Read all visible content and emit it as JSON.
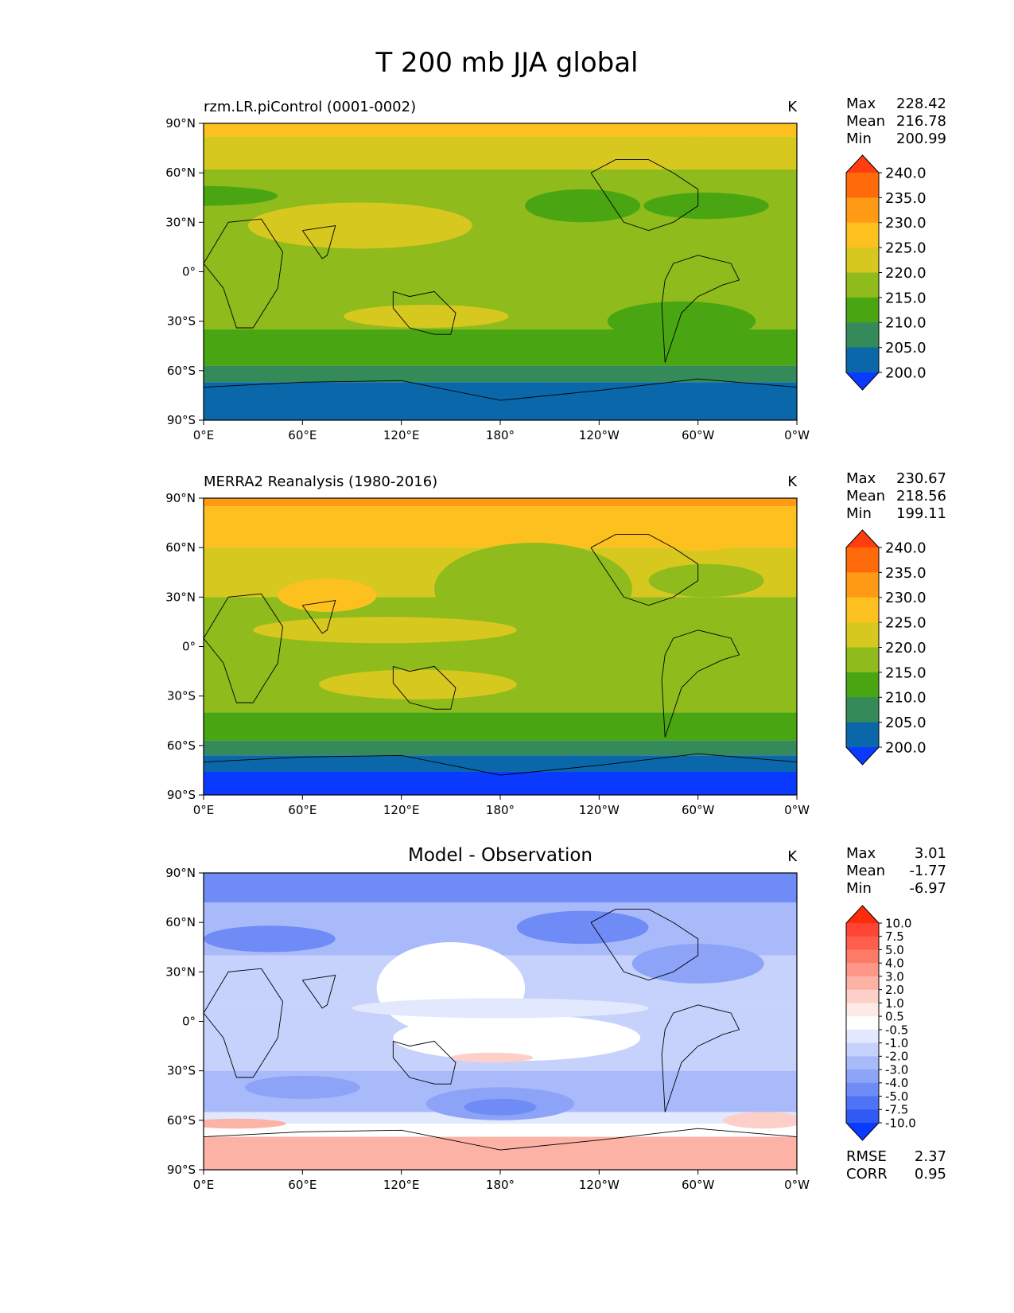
{
  "figure": {
    "title": "T 200 mb JJA global"
  },
  "chart_data": [
    {
      "type": "heatmap",
      "title": "rzm.LR.piControl (0001-0002)",
      "units": "K",
      "x_ticks": [
        "0°E",
        "60°E",
        "120°E",
        "180°",
        "120°W",
        "60°W",
        "0°W"
      ],
      "y_ticks": [
        "90°N",
        "60°N",
        "30°N",
        "0°",
        "30°S",
        "60°S",
        "90°S"
      ],
      "stats": [
        {
          "label": "Max",
          "value": "228.42"
        },
        {
          "label": "Mean",
          "value": "216.78"
        },
        {
          "label": "Min",
          "value": "200.99"
        }
      ],
      "colorbar": {
        "levels": [
          "240.0",
          "235.0",
          "230.0",
          "225.0",
          "220.0",
          "215.0",
          "210.0",
          "205.0",
          "200.0"
        ],
        "colors": [
          "#ff3d0f",
          "#ff6a0a",
          "#ff9a14",
          "#fdc11f",
          "#d6c81f",
          "#8fbb1c",
          "#4aa512",
          "#358a5a",
          "#0a68aa",
          "#0a3aff"
        ]
      },
      "bands": [
        {
          "lat_top": 90,
          "lat_bottom": 82,
          "color": "#fdc11f"
        },
        {
          "lat_top": 82,
          "lat_bottom": 62,
          "color": "#d6c81f"
        },
        {
          "lat_top": 62,
          "lat_bottom": -35,
          "color": "#8fbb1c"
        },
        {
          "lat_top": -35,
          "lat_bottom": -57,
          "color": "#4aa512"
        },
        {
          "lat_top": -57,
          "lat_bottom": -67,
          "color": "#358a5a"
        },
        {
          "lat_top": -67,
          "lat_bottom": -90,
          "color": "#0a68aa"
        }
      ],
      "blobs": [
        {
          "lon": 0,
          "lat": 46,
          "rx_deg": 45,
          "ry_deg": 6,
          "color": "#4aa512"
        },
        {
          "lon": 95,
          "lat": 28,
          "rx_deg": 68,
          "ry_deg": 14,
          "color": "#d6c81f"
        },
        {
          "lon": 135,
          "lat": -27,
          "rx_deg": 50,
          "ry_deg": 7,
          "color": "#d6c81f"
        },
        {
          "lon": 230,
          "lat": 40,
          "rx_deg": 35,
          "ry_deg": 10,
          "color": "#4aa512"
        },
        {
          "lon": 305,
          "lat": 40,
          "rx_deg": 38,
          "ry_deg": 8,
          "color": "#4aa512"
        },
        {
          "lon": 290,
          "lat": -30,
          "rx_deg": 45,
          "ry_deg": 12,
          "color": "#4aa512"
        },
        {
          "lon": 300,
          "lat": 72,
          "rx_deg": 35,
          "ry_deg": 10,
          "color": "#d6c81f"
        }
      ]
    },
    {
      "type": "heatmap",
      "title": "MERRA2 Reanalysis (1980-2016)",
      "units": "K",
      "x_ticks": [
        "0°E",
        "60°E",
        "120°E",
        "180°",
        "120°W",
        "60°W",
        "0°W"
      ],
      "y_ticks": [
        "90°N",
        "60°N",
        "30°N",
        "0°",
        "30°S",
        "60°S",
        "90°S"
      ],
      "stats": [
        {
          "label": "Max",
          "value": "230.67"
        },
        {
          "label": "Mean",
          "value": "218.56"
        },
        {
          "label": "Min",
          "value": "199.11"
        }
      ],
      "colorbar": {
        "levels": [
          "240.0",
          "235.0",
          "230.0",
          "225.0",
          "220.0",
          "215.0",
          "210.0",
          "205.0",
          "200.0"
        ],
        "colors": [
          "#ff3d0f",
          "#ff6a0a",
          "#ff9a14",
          "#fdc11f",
          "#d6c81f",
          "#8fbb1c",
          "#4aa512",
          "#358a5a",
          "#0a68aa",
          "#0a3aff"
        ]
      },
      "bands": [
        {
          "lat_top": 90,
          "lat_bottom": 85,
          "color": "#ff9a14"
        },
        {
          "lat_top": 85,
          "lat_bottom": 60,
          "color": "#fdc11f"
        },
        {
          "lat_top": 60,
          "lat_bottom": 30,
          "color": "#d6c81f"
        },
        {
          "lat_top": 30,
          "lat_bottom": -40,
          "color": "#8fbb1c"
        },
        {
          "lat_top": -40,
          "lat_bottom": -57,
          "color": "#4aa512"
        },
        {
          "lat_top": -57,
          "lat_bottom": -66,
          "color": "#358a5a"
        },
        {
          "lat_top": -66,
          "lat_bottom": -76,
          "color": "#0a68aa"
        },
        {
          "lat_top": -76,
          "lat_bottom": -90,
          "color": "#0a3aff"
        }
      ],
      "blobs": [
        {
          "lon": 200,
          "lat": 35,
          "rx_deg": 60,
          "ry_deg": 28,
          "color": "#8fbb1c"
        },
        {
          "lon": 75,
          "lat": 31,
          "rx_deg": 30,
          "ry_deg": 10,
          "color": "#fdc11f"
        },
        {
          "lon": 130,
          "lat": -23,
          "rx_deg": 60,
          "ry_deg": 9,
          "color": "#d6c81f"
        },
        {
          "lon": 110,
          "lat": 10,
          "rx_deg": 80,
          "ry_deg": 8,
          "color": "#d6c81f"
        },
        {
          "lon": 305,
          "lat": 40,
          "rx_deg": 35,
          "ry_deg": 10,
          "color": "#8fbb1c"
        },
        {
          "lon": 300,
          "lat": 70,
          "rx_deg": 35,
          "ry_deg": 12,
          "color": "#fdc11f"
        }
      ]
    },
    {
      "type": "heatmap",
      "title": "Model - Observation",
      "units": "K",
      "x_ticks": [
        "0°E",
        "60°E",
        "120°E",
        "180°",
        "120°W",
        "60°W",
        "0°W"
      ],
      "y_ticks": [
        "90°N",
        "60°N",
        "30°N",
        "0°",
        "30°S",
        "60°S",
        "90°S"
      ],
      "stats": [
        {
          "label": "Max",
          "value": "3.01"
        },
        {
          "label": "Mean",
          "value": "-1.77"
        },
        {
          "label": "Min",
          "value": "-6.97"
        }
      ],
      "extra_stats": [
        {
          "label": "RMSE",
          "value": "2.37"
        },
        {
          "label": "CORR",
          "value": "0.95"
        }
      ],
      "colorbar": {
        "levels": [
          "10.0",
          "7.5",
          "5.0",
          "4.0",
          "3.0",
          "2.0",
          "1.0",
          "0.5",
          "-0.5",
          "-1.0",
          "-2.0",
          "-3.0",
          "-4.0",
          "-5.0",
          "-7.5",
          "-10.0"
        ],
        "colors": [
          "#ff2b0a",
          "#ff4433",
          "#ff5e4d",
          "#fd7a69",
          "#fd9888",
          "#fcb3a6",
          "#fcd0c8",
          "#fde9e5",
          "#ffffff",
          "#e2e8fd",
          "#c6d1fc",
          "#a9bafa",
          "#8ca3f8",
          "#6f8cf6",
          "#4f73f5",
          "#2f5af5",
          "#0a3aff"
        ]
      },
      "bands": [
        {
          "lat_top": 90,
          "lat_bottom": 72,
          "color": "#6f8cf6"
        },
        {
          "lat_top": 72,
          "lat_bottom": 40,
          "color": "#a9bafa"
        },
        {
          "lat_top": 40,
          "lat_bottom": 10,
          "color": "#c6d1fc"
        },
        {
          "lat_top": 10,
          "lat_bottom": -30,
          "color": "#c6d1fc"
        },
        {
          "lat_top": -30,
          "lat_bottom": -55,
          "color": "#a9bafa"
        },
        {
          "lat_top": -55,
          "lat_bottom": -62,
          "color": "#e2e8fd"
        },
        {
          "lat_top": -62,
          "lat_bottom": -70,
          "color": "#ffffff"
        },
        {
          "lat_top": -70,
          "lat_bottom": -90,
          "color": "#fcb3a6"
        }
      ],
      "blobs": [
        {
          "lon": 150,
          "lat": 20,
          "rx_deg": 45,
          "ry_deg": 28,
          "color": "#ffffff"
        },
        {
          "lon": 190,
          "lat": -10,
          "rx_deg": 75,
          "ry_deg": 14,
          "color": "#ffffff"
        },
        {
          "lon": 180,
          "lat": 8,
          "rx_deg": 90,
          "ry_deg": 6,
          "color": "#e2e8fd"
        },
        {
          "lon": 40,
          "lat": 50,
          "rx_deg": 40,
          "ry_deg": 8,
          "color": "#6f8cf6"
        },
        {
          "lon": 230,
          "lat": 57,
          "rx_deg": 40,
          "ry_deg": 10,
          "color": "#6f8cf6"
        },
        {
          "lon": 300,
          "lat": 35,
          "rx_deg": 40,
          "ry_deg": 12,
          "color": "#8ca3f8"
        },
        {
          "lon": 180,
          "lat": -50,
          "rx_deg": 45,
          "ry_deg": 10,
          "color": "#8ca3f8"
        },
        {
          "lon": 180,
          "lat": -52,
          "rx_deg": 22,
          "ry_deg": 5,
          "color": "#6f8cf6"
        },
        {
          "lon": 60,
          "lat": -40,
          "rx_deg": 35,
          "ry_deg": 7,
          "color": "#8ca3f8"
        },
        {
          "lon": 175,
          "lat": -22,
          "rx_deg": 25,
          "ry_deg": 3,
          "color": "#fcd0c8"
        },
        {
          "lon": 20,
          "lat": -62,
          "rx_deg": 30,
          "ry_deg": 3,
          "color": "#fcb3a6"
        },
        {
          "lon": 340,
          "lat": -60,
          "rx_deg": 25,
          "ry_deg": 5,
          "color": "#fcd0c8"
        }
      ]
    }
  ]
}
